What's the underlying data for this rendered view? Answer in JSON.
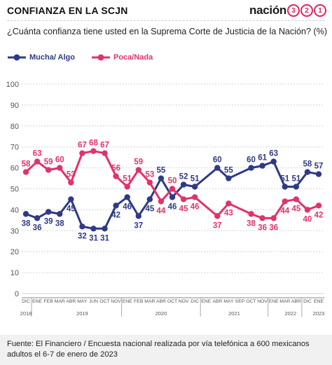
{
  "header": {
    "title": "CONFIANZA EN LA SCJN",
    "logo_word": "nación",
    "logo_digits": [
      "3",
      "2",
      "1"
    ]
  },
  "question": "¿Cuánta confianza tiene usted en la Suprema Corte de Justicia de la Nación? (%)",
  "footer": {
    "source": "Fuente: El Financiero /  Encuesta nacional realizada por vía telefónica a 600 mexicanos adultos el 6-7 de enero de 2023"
  },
  "colors": {
    "series_mucha": "#2e3a85",
    "series_poca": "#e0336a",
    "grid": "#d4d4d4",
    "axis": "#555555"
  },
  "chart_data": {
    "type": "line",
    "title": "",
    "xlabel": "",
    "ylabel": "",
    "ylim": [
      0,
      100
    ],
    "yticks": [
      0,
      10,
      20,
      30,
      40,
      50,
      60,
      70,
      80,
      90,
      100
    ],
    "grid": true,
    "legend_position": "top-left",
    "x_labels": [
      "DIC",
      "ENE",
      "FEB",
      "MAR",
      "ABR",
      "MAY",
      "JUN",
      "OCT",
      "NOV",
      "ENE",
      "FEB",
      "MAR",
      "ABR",
      "OCT",
      "NOV",
      "DIC",
      "ENE",
      "ABR",
      "MAY",
      "SEP",
      "OCT",
      "NOV",
      "ENE",
      "MAR",
      "ABR",
      "DIC",
      "ENE"
    ],
    "year_labels": [
      {
        "label": "2018",
        "at": 0
      },
      {
        "label": "2019",
        "at": 5
      },
      {
        "label": "2020",
        "at": 12
      },
      {
        "label": "2021",
        "at": 18.5
      },
      {
        "label": "2022",
        "at": 23.5
      },
      {
        "label": "2023",
        "at": 26
      }
    ],
    "year_dividers_after": [
      0,
      8,
      15,
      21,
      24
    ],
    "series": [
      {
        "name": "Mucha/ Algo",
        "values": [
          38,
          36,
          39,
          38,
          45,
          32,
          31,
          31,
          42,
          46,
          37,
          45,
          55,
          46,
          52,
          51,
          60,
          55,
          60,
          61,
          63,
          51,
          51,
          58,
          57
        ],
        "x_index": [
          0,
          1,
          2,
          3,
          4,
          5,
          6,
          7,
          8,
          9,
          10,
          11,
          12,
          13,
          14,
          15,
          17,
          18,
          20,
          21,
          22,
          23,
          24,
          25,
          26
        ]
      },
      {
        "name": "Poca/Nada",
        "values": [
          58,
          63,
          59,
          60,
          53,
          67,
          68,
          67,
          56,
          51,
          59,
          53,
          44,
          50,
          45,
          46,
          37,
          43,
          38,
          36,
          36,
          44,
          45,
          40,
          42
        ],
        "x_index": [
          0,
          1,
          2,
          3,
          4,
          5,
          6,
          7,
          8,
          9,
          10,
          11,
          12,
          13,
          14,
          15,
          17,
          18,
          20,
          21,
          22,
          23,
          24,
          25,
          26
        ]
      }
    ]
  }
}
